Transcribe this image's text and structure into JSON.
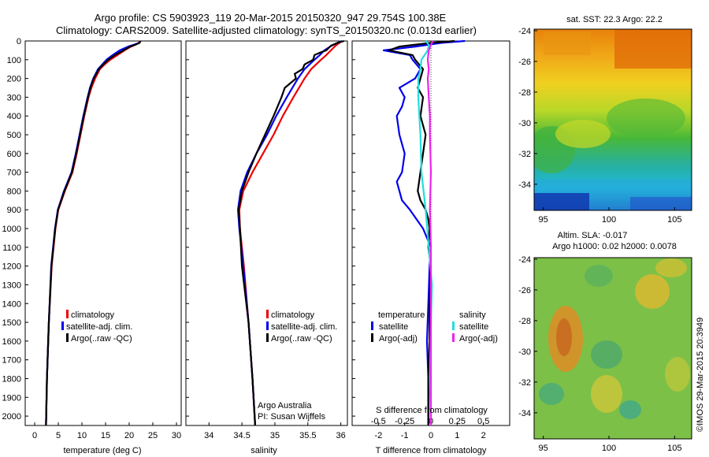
{
  "titles": {
    "line1": "Argo profile: CS 5903923_119 20-Mar-2015 20150320_947 29.754S 100.38E",
    "line2": "Climatology: CARS2009. Satellite-adjusted climatology: synTS_20150320.nc (0.013d earlier)"
  },
  "depth_ticks": [
    "0",
    "100",
    "200",
    "300",
    "400",
    "500",
    "600",
    "700",
    "800",
    "900",
    "1000",
    "1100",
    "1200",
    "1300",
    "1400",
    "1500",
    "1600",
    "1700",
    "1800",
    "1900",
    "2000"
  ],
  "colors": {
    "climatology": "#ee0000",
    "satellite": "#0000ee",
    "argo": "#000000",
    "satellite_s": "#22dddd",
    "argo_s": "#ee22ee"
  },
  "chart_data": [
    {
      "type": "line",
      "xlabel": "temperature (deg C)",
      "ylabel": "",
      "xlim": [
        -2,
        31
      ],
      "ylim": [
        2050,
        0
      ],
      "x_ticks": [
        "0",
        "5",
        "10",
        "15",
        "20",
        "25",
        "30"
      ],
      "legend": {
        "placement": "lower-right",
        "items": [
          "climatology",
          "satellite-adj. clim.",
          "Argo(..raw -QC)"
        ]
      },
      "series": [
        {
          "name": "climatology",
          "depth": [
            0,
            10,
            20,
            30,
            50,
            75,
            100,
            125,
            150,
            200,
            250,
            300,
            400,
            500,
            600,
            700,
            800,
            900,
            1000,
            1200,
            1500,
            1800,
            2050
          ],
          "values": [
            22.3,
            22.0,
            21.3,
            20.4,
            19.0,
            17.5,
            16.0,
            14.8,
            13.8,
            12.8,
            12.0,
            11.4,
            10.5,
            9.7,
            8.9,
            8.0,
            6.4,
            5.0,
            4.4,
            3.6,
            3.0,
            2.6,
            2.4
          ]
        },
        {
          "name": "satellite-adj. clim.",
          "depth": [
            0,
            10,
            20,
            30,
            50,
            75,
            100,
            125,
            150,
            200,
            250,
            300,
            400,
            500,
            600,
            700,
            800,
            900,
            1000,
            1200,
            1500,
            1800,
            2050
          ],
          "values": [
            22.4,
            22.1,
            21.0,
            19.8,
            18.0,
            16.5,
            15.2,
            14.3,
            13.4,
            12.4,
            11.7,
            11.2,
            10.3,
            9.5,
            8.7,
            7.8,
            6.2,
            4.9,
            4.3,
            3.5,
            3.0,
            2.6,
            2.4
          ]
        },
        {
          "name": "Argo(..raw -QC)",
          "depth": [
            0,
            10,
            20,
            30,
            50,
            75,
            100,
            125,
            150,
            200,
            250,
            300,
            400,
            500,
            600,
            700,
            800,
            900,
            1000,
            1200,
            1500,
            1800,
            2050
          ],
          "values": [
            22.4,
            22.2,
            21.3,
            20.2,
            18.8,
            17.0,
            15.6,
            14.5,
            13.6,
            12.5,
            11.8,
            11.3,
            10.4,
            9.6,
            8.8,
            7.9,
            6.3,
            4.95,
            4.35,
            3.55,
            3.0,
            2.6,
            2.4
          ]
        }
      ]
    },
    {
      "type": "line",
      "xlabel": "salinity",
      "xlim": [
        33.65,
        36.1
      ],
      "ylim": [
        2050,
        0
      ],
      "x_ticks": [
        "34",
        "34.5",
        "35",
        "35.5",
        "36"
      ],
      "legend": {
        "placement": "lower-right",
        "items": [
          "climatology",
          "satellite-adj. clim.",
          "Argo(..raw -QC)"
        ]
      },
      "annotations": [
        "Argo Australia",
        "PI: Susan Wijffels"
      ],
      "series": [
        {
          "name": "climatology",
          "depth": [
            0,
            10,
            25,
            50,
            75,
            100,
            150,
            200,
            300,
            400,
            500,
            600,
            700,
            800,
            900,
            1000,
            1200,
            1500,
            1800,
            2050
          ],
          "values": [
            36.0,
            35.98,
            35.92,
            35.85,
            35.78,
            35.7,
            35.55,
            35.45,
            35.28,
            35.12,
            34.98,
            34.82,
            34.66,
            34.52,
            34.46,
            34.47,
            34.53,
            34.6,
            34.66,
            34.7
          ]
        },
        {
          "name": "satellite-adj. clim.",
          "depth": [
            0,
            10,
            25,
            50,
            75,
            100,
            150,
            200,
            300,
            400,
            500,
            600,
            700,
            800,
            900,
            1000,
            1200,
            1500,
            1800,
            2050
          ],
          "values": [
            36.02,
            35.95,
            35.86,
            35.75,
            35.68,
            35.6,
            35.45,
            35.35,
            35.18,
            35.02,
            34.88,
            34.72,
            34.58,
            34.48,
            34.44,
            34.46,
            34.52,
            34.6,
            34.66,
            34.7
          ]
        },
        {
          "name": "Argo(..raw -QC)",
          "depth": [
            0,
            10,
            25,
            50,
            60,
            75,
            100,
            125,
            150,
            175,
            200,
            250,
            300,
            400,
            500,
            600,
            700,
            800,
            900,
            1000,
            1200,
            1500,
            1800,
            2050
          ],
          "values": [
            36.05,
            35.95,
            35.85,
            35.78,
            35.7,
            35.6,
            35.58,
            35.45,
            35.42,
            35.3,
            35.32,
            35.15,
            35.1,
            34.98,
            34.85,
            34.72,
            34.6,
            34.5,
            34.45,
            34.47,
            34.5,
            34.6,
            34.66,
            34.7
          ]
        }
      ]
    },
    {
      "type": "line",
      "xlabel": "T difference from climatology",
      "top_label": "S difference from climatology",
      "xlim": [
        -3,
        3
      ],
      "ylim": [
        2050,
        0
      ],
      "x_ticks": [
        "-2",
        "-1",
        "0",
        "1",
        "2"
      ],
      "top_ticks": [
        "-0.5",
        "-0.25",
        "0",
        "0.25",
        "0.5"
      ],
      "legend": {
        "placement": "lower",
        "temperature_title": "temperature",
        "salinity_title": "salinity",
        "items": [
          "satellite",
          "Argo(-adj)",
          "satellite",
          "Argo(-adj)"
        ]
      },
      "series": [
        {
          "name": "satellite",
          "kind": "temperature",
          "depth": [
            0,
            10,
            30,
            50,
            75,
            100,
            150,
            200,
            250,
            300,
            350,
            400,
            500,
            600,
            700,
            750,
            800,
            850,
            900,
            1000,
            1100,
            1200,
            1400,
            1600,
            1800,
            2050
          ],
          "values": [
            1.3,
            0.4,
            -0.6,
            -1.8,
            -0.8,
            -0.7,
            -0.4,
            -0.6,
            -1.2,
            -1.0,
            -1.1,
            -1.3,
            -1.2,
            -1.0,
            -1.1,
            -1.3,
            -1.2,
            -1.1,
            -0.8,
            -0.3,
            0.0,
            -0.05,
            -0.1,
            -0.15,
            -0.1,
            -0.1
          ]
        },
        {
          "name": "Argo(-adj)",
          "kind": "temperature",
          "depth": [
            0,
            10,
            30,
            50,
            75,
            100,
            150,
            200,
            250,
            300,
            400,
            500,
            600,
            700,
            800,
            850,
            900,
            950,
            1000,
            1100,
            1200,
            1400,
            1600,
            1800,
            2050
          ],
          "values": [
            0.9,
            0.0,
            -1.2,
            -1.6,
            -0.7,
            -0.6,
            -0.3,
            -0.4,
            -0.5,
            -0.3,
            -0.4,
            -0.2,
            -0.3,
            -0.4,
            -0.5,
            -0.4,
            -0.2,
            -0.1,
            -0.05,
            -0.1,
            0.0,
            -0.05,
            -0.05,
            -0.1,
            -0.1
          ]
        },
        {
          "name": "satellite",
          "kind": "salinity",
          "depth": [
            0,
            20,
            50,
            100,
            150,
            200,
            300,
            400,
            500,
            700,
            900,
            1100,
            1300,
            1500,
            1800,
            2050
          ],
          "values": [
            -0.05,
            -0.02,
            -0.03,
            -0.09,
            -0.1,
            -0.12,
            -0.12,
            -0.11,
            -0.1,
            -0.09,
            -0.05,
            -0.02,
            0.01,
            0.0,
            -0.01,
            0.0
          ]
        },
        {
          "name": "Argo(-adj)",
          "kind": "salinity",
          "depth": [
            0,
            20,
            50,
            100,
            150,
            200,
            300,
            400,
            500,
            700,
            900,
            1100,
            1300,
            1500,
            1800,
            2050
          ],
          "values": [
            0.02,
            0.0,
            -0.02,
            -0.03,
            -0.02,
            -0.03,
            -0.02,
            -0.01,
            -0.01,
            0.0,
            -0.01,
            0.0,
            0.0,
            0.0,
            0.0,
            0.0
          ]
        }
      ]
    },
    {
      "type": "heatmap",
      "title": "sat. SST: 22.3  Argo: 22.2",
      "xlim": [
        94.3,
        106.3
      ],
      "ylim": [
        -35.7,
        -23.9
      ],
      "x_ticks": [
        "95",
        "100",
        "105"
      ],
      "y_ticks": [
        "-24",
        "-26",
        "-28",
        "-30",
        "-32",
        "-34"
      ]
    },
    {
      "type": "heatmap",
      "title": "Altim. SLA: -0.017",
      "subtitle": "Argo h1000: 0.02  h2000: 0.0078",
      "xlim": [
        94.3,
        106.3
      ],
      "ylim": [
        -35.7,
        -23.9
      ],
      "x_ticks": [
        "95",
        "100",
        "105"
      ],
      "y_ticks": [
        "-24",
        "-26",
        "-28",
        "-30",
        "-32",
        "-34"
      ]
    }
  ],
  "credit": "©IMOS 29-Mar-2015 20:3949"
}
